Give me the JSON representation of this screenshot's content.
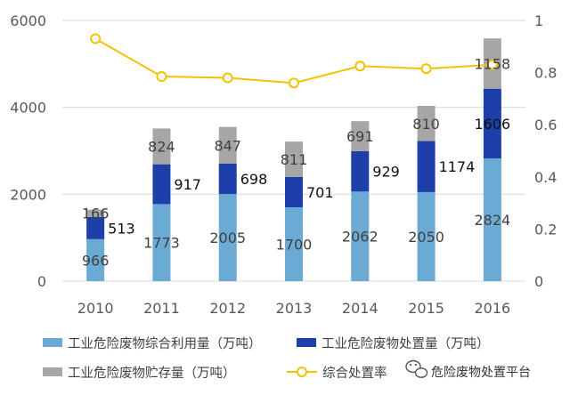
{
  "chart_data": {
    "type": "bar",
    "stacked": true,
    "categories": [
      "2010",
      "2011",
      "2012",
      "2013",
      "2014",
      "2015",
      "2016"
    ],
    "series": [
      {
        "name": "工业危险废物综合利用量（万吨）",
        "color": "#6BAAD3",
        "axis": "left",
        "values": [
          966,
          1773,
          2005,
          1700,
          2062,
          2050,
          2824
        ],
        "labels": [
          "966",
          "1773",
          "2005",
          "1700",
          "2062",
          "2050",
          "2824"
        ]
      },
      {
        "name": "工业危险废物处置量（万吨）",
        "color": "#1F3FA8",
        "axis": "left",
        "values": [
          513,
          917,
          698,
          701,
          929,
          1174,
          1606
        ],
        "labels": [
          "513",
          "917",
          "698",
          "701",
          "929",
          "1174",
          "1606"
        ]
      },
      {
        "name": "工业危险废物贮存量（万吨）",
        "color": "#A6A6A6",
        "axis": "left",
        "values": [
          166,
          824,
          847,
          811,
          691,
          810,
          1158
        ],
        "labels": [
          "166",
          "824",
          "847",
          "811",
          "691",
          "810",
          "1158"
        ]
      },
      {
        "name": "综合处置率",
        "type": "line",
        "color": "#F2C200",
        "axis": "right",
        "values": [
          0.93,
          0.785,
          0.78,
          0.76,
          0.825,
          0.815,
          0.83
        ]
      }
    ],
    "left_axis": {
      "ylim": [
        0,
        6000
      ],
      "ticks": [
        "0",
        "2000",
        "4000",
        "6000"
      ]
    },
    "right_axis": {
      "ylim": [
        0,
        1
      ],
      "ticks": [
        "0",
        "0.2",
        "0.4",
        "0.6",
        "0.8",
        "1"
      ]
    },
    "legend": "bottom",
    "grid": true
  },
  "watermark": {
    "text": "危险废物处置平台",
    "icon": "wechat-icon"
  }
}
